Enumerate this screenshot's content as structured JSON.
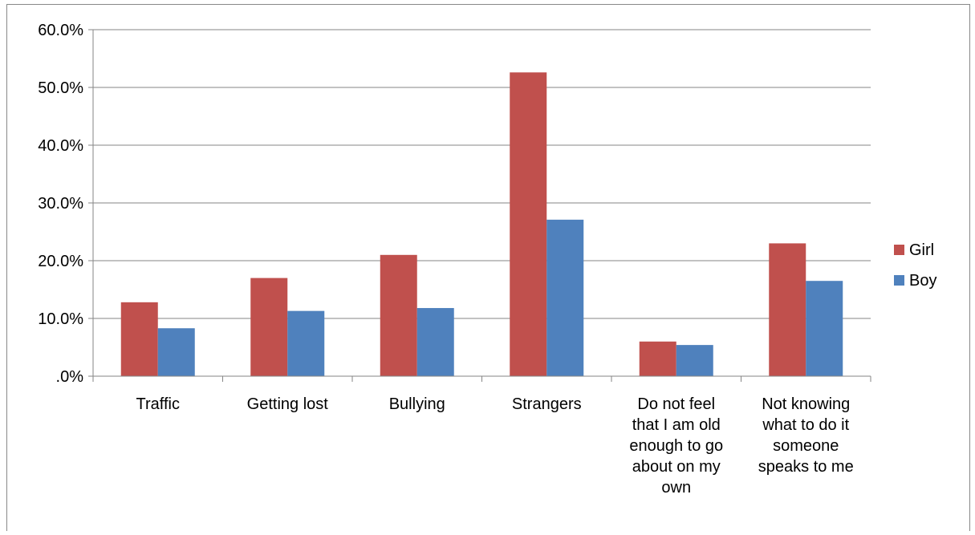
{
  "chart_data": {
    "type": "bar",
    "title": "",
    "xlabel": "",
    "ylabel": "",
    "ylim": [
      0,
      60
    ],
    "y_ticks": [
      0,
      10,
      20,
      30,
      40,
      50,
      60
    ],
    "y_tick_labels": [
      ".0%",
      "10.0%",
      "20.0%",
      "30.0%",
      "40.0%",
      "50.0%",
      "60.0%"
    ],
    "grid": true,
    "legend_position": "right",
    "categories": [
      [
        "Traffic"
      ],
      [
        "Getting lost"
      ],
      [
        "Bullying"
      ],
      [
        "Strangers"
      ],
      [
        "Do not feel",
        "that I am old",
        "enough to go",
        "about on my",
        "own"
      ],
      [
        "Not knowing",
        "what to do it",
        "someone",
        "speaks to me"
      ]
    ],
    "series": [
      {
        "name": "Girl",
        "color": "#c0504d",
        "values": [
          12.8,
          17.0,
          21.0,
          52.6,
          6.0,
          23.0
        ]
      },
      {
        "name": "Boy",
        "color": "#4f81bd",
        "values": [
          8.3,
          11.3,
          11.8,
          27.1,
          5.4,
          16.5
        ]
      }
    ]
  }
}
